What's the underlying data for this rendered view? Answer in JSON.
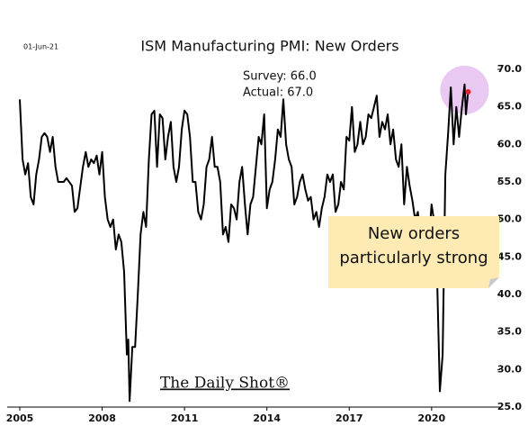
{
  "chart_data": {
    "type": "line",
    "date_label": "01-Jun-21",
    "title": "ISM Manufacturing PMI:  New Orders",
    "survey": "Survey: 66.0",
    "actual": "Actual:  67.0",
    "annotation": [
      "New orders",
      "particularly strong"
    ],
    "logo": "The Daily Shot®",
    "color": "#000000",
    "marker_color": "#e8202a",
    "highlight_color": "#e9c8f2",
    "xlim": [
      2005,
      2022.2
    ],
    "xticks": [
      2005,
      2008,
      2011,
      2014,
      2017,
      2020
    ],
    "ylim": [
      25,
      70
    ],
    "yticks": [
      {
        "value": 25,
        "label": "25.0"
      },
      {
        "value": 30,
        "label": "30.0"
      },
      {
        "value": 35,
        "label": "35.0"
      },
      {
        "value": 40,
        "label": "40.0"
      },
      {
        "value": 45,
        "label": "45.0"
      },
      {
        "value": 50,
        "label": "50.0"
      },
      {
        "value": 55,
        "label": "55.0"
      },
      {
        "value": 60,
        "label": "60.0"
      },
      {
        "value": 65,
        "label": "65.0"
      },
      {
        "value": 70,
        "label": "70.0"
      }
    ],
    "x": [
      2005.0,
      2005.1,
      2005.2,
      2005.3,
      2005.4,
      2005.5,
      2005.6,
      2005.7,
      2005.8,
      2005.9,
      2006.0,
      2006.1,
      2006.2,
      2006.3,
      2006.4,
      2006.6,
      2006.7,
      2006.9,
      2007.0,
      2007.1,
      2007.3,
      2007.4,
      2007.5,
      2007.6,
      2007.7,
      2007.8,
      2007.9,
      2008.0,
      2008.1,
      2008.2,
      2008.3,
      2008.4,
      2008.5,
      2008.6,
      2008.7,
      2008.8,
      2008.9,
      2008.95,
      2009.0,
      2009.1,
      2009.2,
      2009.3,
      2009.4,
      2009.5,
      2009.6,
      2009.7,
      2009.8,
      2009.9,
      2010.0,
      2010.1,
      2010.2,
      2010.3,
      2010.4,
      2010.5,
      2010.6,
      2010.7,
      2010.8,
      2010.9,
      2011.0,
      2011.1,
      2011.2,
      2011.3,
      2011.4,
      2011.5,
      2011.6,
      2011.7,
      2011.8,
      2011.9,
      2012.0,
      2012.1,
      2012.2,
      2012.3,
      2012.4,
      2012.5,
      2012.6,
      2012.7,
      2012.8,
      2012.9,
      2013.0,
      2013.1,
      2013.2,
      2013.3,
      2013.4,
      2013.5,
      2013.6,
      2013.7,
      2013.8,
      2013.9,
      2014.0,
      2014.1,
      2014.2,
      2014.3,
      2014.4,
      2014.5,
      2014.6,
      2014.7,
      2014.8,
      2014.9,
      2015.0,
      2015.1,
      2015.2,
      2015.3,
      2015.4,
      2015.5,
      2015.6,
      2015.7,
      2015.8,
      2015.9,
      2016.0,
      2016.1,
      2016.2,
      2016.3,
      2016.4,
      2016.5,
      2016.6,
      2016.7,
      2016.8,
      2016.9,
      2017.0,
      2017.1,
      2017.2,
      2017.3,
      2017.4,
      2017.5,
      2017.6,
      2017.7,
      2017.8,
      2017.9,
      2018.0,
      2018.1,
      2018.2,
      2018.3,
      2018.4,
      2018.5,
      2018.6,
      2018.7,
      2018.8,
      2018.9,
      2019.0,
      2019.1,
      2019.2,
      2019.3,
      2019.4,
      2019.5,
      2019.6,
      2019.7,
      2019.8,
      2019.9,
      2020.0,
      2020.1,
      2020.2,
      2020.3,
      2020.4,
      2020.5,
      2020.6,
      2020.7,
      2020.8,
      2020.9,
      2021.0,
      2021.1,
      2021.2,
      2021.25,
      2021.33
    ],
    "values": [
      66,
      58,
      56,
      57.5,
      53,
      52,
      56,
      58,
      61,
      61.5,
      61,
      59,
      61,
      57,
      55,
      55,
      55.5,
      54.5,
      51,
      51.5,
      57,
      59,
      57,
      58,
      57.5,
      58.5,
      56,
      59,
      53,
      50,
      49,
      50,
      46,
      48,
      47,
      43,
      32,
      34,
      25.8,
      33,
      33,
      40,
      48,
      51,
      49,
      58,
      64,
      64.5,
      57,
      64,
      63.5,
      58,
      61,
      63,
      57,
      55,
      57,
      62,
      64.5,
      64,
      61,
      55,
      55,
      51,
      50,
      52,
      57,
      58,
      61,
      57,
      57,
      55,
      48,
      49,
      47,
      52,
      51.5,
      50,
      55,
      57,
      52,
      48,
      52,
      53,
      57,
      61,
      60,
      64,
      51.5,
      54,
      55,
      58,
      62,
      61,
      66,
      60,
      58,
      57,
      52,
      53,
      55,
      56,
      54,
      52.5,
      53,
      50,
      51,
      49,
      51.5,
      53,
      56,
      55,
      56,
      51,
      52,
      55,
      54,
      61,
      60.5,
      65,
      59,
      60,
      63,
      60,
      61,
      64,
      63.5,
      65,
      66.5,
      61,
      63,
      62,
      64,
      60,
      62,
      58,
      57,
      60,
      52,
      57,
      54.5,
      52.5,
      50,
      51,
      47.5,
      49,
      49,
      47,
      52,
      49.5,
      42,
      27.1,
      32,
      56,
      61.5,
      67.6,
      60,
      65,
      61,
      64.8,
      68,
      64,
      67
    ]
  }
}
